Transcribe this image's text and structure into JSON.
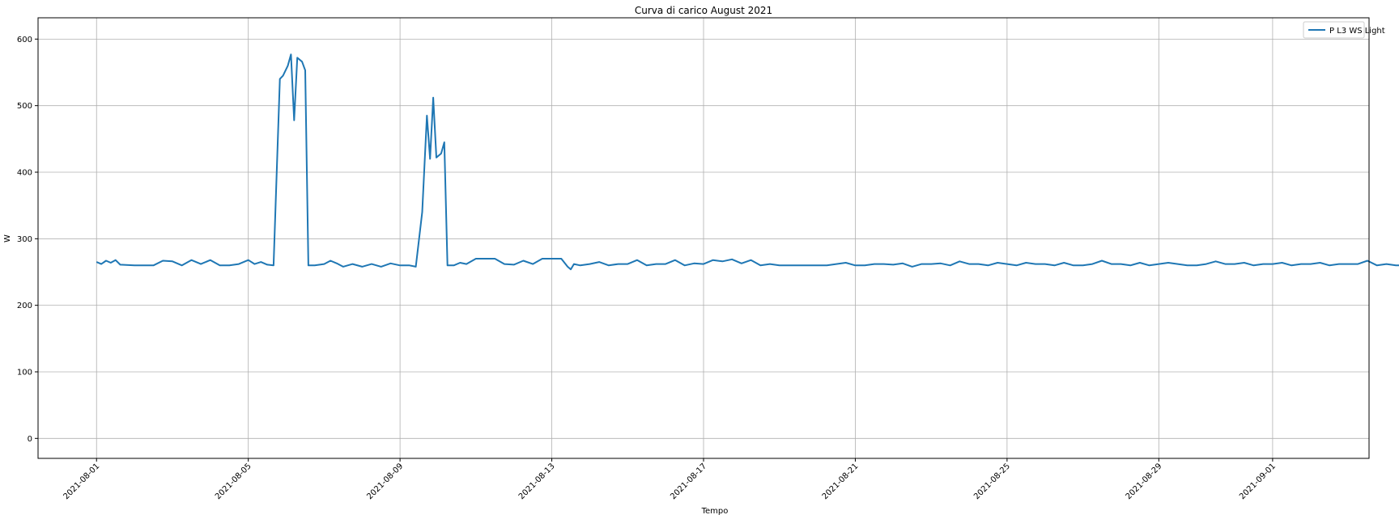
{
  "chart_data": {
    "type": "line",
    "title": "Curva di carico August 2021",
    "xlabel": "Tempo",
    "ylabel": "W",
    "xlim": [
      "2021-07-30T11:00",
      "2021-09-03T13:00"
    ],
    "ylim": [
      -30,
      632
    ],
    "x_ticks": [
      "2021-08-01",
      "2021-08-05",
      "2021-08-09",
      "2021-08-13",
      "2021-08-17",
      "2021-08-21",
      "2021-08-25",
      "2021-08-29",
      "2021-09-01"
    ],
    "y_ticks": [
      "0",
      "100",
      "200",
      "300",
      "400",
      "500",
      "600"
    ],
    "grid": true,
    "legend_position": "top-right",
    "colors": {
      "series": "#1f77b4",
      "grid": "#b0b0b0",
      "axes": "#000000",
      "legend_border": "#cccccc"
    },
    "series": [
      {
        "name": "P L3 WS Light",
        "points": [
          [
            "2021-08-01T00:00",
            265
          ],
          [
            "2021-08-01T03:00",
            262
          ],
          [
            "2021-08-01T06:00",
            267
          ],
          [
            "2021-08-01T09:00",
            264
          ],
          [
            "2021-08-01T12:00",
            268
          ],
          [
            "2021-08-01T15:00",
            261
          ],
          [
            "2021-08-02T00:00",
            260
          ],
          [
            "2021-08-02T06:00",
            260
          ],
          [
            "2021-08-02T12:00",
            260
          ],
          [
            "2021-08-02T18:00",
            267
          ],
          [
            "2021-08-03T00:00",
            266
          ],
          [
            "2021-08-03T06:00",
            260
          ],
          [
            "2021-08-03T12:00",
            268
          ],
          [
            "2021-08-03T18:00",
            262
          ],
          [
            "2021-08-04T00:00",
            268
          ],
          [
            "2021-08-04T06:00",
            260
          ],
          [
            "2021-08-04T12:00",
            260
          ],
          [
            "2021-08-04T18:00",
            262
          ],
          [
            "2021-08-05T00:00",
            268
          ],
          [
            "2021-08-05T04:00",
            262
          ],
          [
            "2021-08-05T08:00",
            265
          ],
          [
            "2021-08-05T12:00",
            261
          ],
          [
            "2021-08-05T16:00",
            260
          ],
          [
            "2021-08-05T20:00",
            540
          ],
          [
            "2021-08-05T22:00",
            545
          ],
          [
            "2021-08-06T01:00",
            560
          ],
          [
            "2021-08-06T03:00",
            577
          ],
          [
            "2021-08-06T05:00",
            478
          ],
          [
            "2021-08-06T07:00",
            572
          ],
          [
            "2021-08-06T10:00",
            566
          ],
          [
            "2021-08-06T12:00",
            553
          ],
          [
            "2021-08-06T14:00",
            260
          ],
          [
            "2021-08-06T18:00",
            260
          ],
          [
            "2021-08-07T00:00",
            262
          ],
          [
            "2021-08-07T04:00",
            267
          ],
          [
            "2021-08-07T08:00",
            263
          ],
          [
            "2021-08-07T12:00",
            258
          ],
          [
            "2021-08-07T18:00",
            262
          ],
          [
            "2021-08-08T00:00",
            258
          ],
          [
            "2021-08-08T06:00",
            262
          ],
          [
            "2021-08-08T12:00",
            258
          ],
          [
            "2021-08-08T18:00",
            263
          ],
          [
            "2021-08-09T00:00",
            260
          ],
          [
            "2021-08-09T06:00",
            260
          ],
          [
            "2021-08-09T10:00",
            258
          ],
          [
            "2021-08-09T14:00",
            340
          ],
          [
            "2021-08-09T17:00",
            485
          ],
          [
            "2021-08-09T19:00",
            420
          ],
          [
            "2021-08-09T21:00",
            512
          ],
          [
            "2021-08-09T23:00",
            422
          ],
          [
            "2021-08-10T02:00",
            428
          ],
          [
            "2021-08-10T04:00",
            445
          ],
          [
            "2021-08-10T06:00",
            260
          ],
          [
            "2021-08-10T10:00",
            260
          ],
          [
            "2021-08-10T14:00",
            264
          ],
          [
            "2021-08-10T18:00",
            262
          ],
          [
            "2021-08-11T00:00",
            270
          ],
          [
            "2021-08-11T06:00",
            270
          ],
          [
            "2021-08-11T12:00",
            270
          ],
          [
            "2021-08-11T18:00",
            262
          ],
          [
            "2021-08-12T00:00",
            261
          ],
          [
            "2021-08-12T06:00",
            267
          ],
          [
            "2021-08-12T12:00",
            262
          ],
          [
            "2021-08-12T18:00",
            270
          ],
          [
            "2021-08-13T00:00",
            270
          ],
          [
            "2021-08-13T06:00",
            270
          ],
          [
            "2021-08-13T10:00",
            258
          ],
          [
            "2021-08-13T12:00",
            254
          ],
          [
            "2021-08-13T14:00",
            262
          ],
          [
            "2021-08-13T18:00",
            260
          ],
          [
            "2021-08-14T00:00",
            262
          ],
          [
            "2021-08-14T06:00",
            265
          ],
          [
            "2021-08-14T12:00",
            260
          ],
          [
            "2021-08-14T18:00",
            262
          ],
          [
            "2021-08-15T00:00",
            262
          ],
          [
            "2021-08-15T06:00",
            268
          ],
          [
            "2021-08-15T12:00",
            260
          ],
          [
            "2021-08-15T18:00",
            262
          ],
          [
            "2021-08-16T00:00",
            262
          ],
          [
            "2021-08-16T06:00",
            268
          ],
          [
            "2021-08-16T12:00",
            260
          ],
          [
            "2021-08-16T18:00",
            263
          ],
          [
            "2021-08-17T00:00",
            262
          ],
          [
            "2021-08-17T06:00",
            268
          ],
          [
            "2021-08-17T12:00",
            266
          ],
          [
            "2021-08-17T18:00",
            269
          ],
          [
            "2021-08-18T00:00",
            263
          ],
          [
            "2021-08-18T06:00",
            268
          ],
          [
            "2021-08-18T12:00",
            260
          ],
          [
            "2021-08-18T18:00",
            262
          ],
          [
            "2021-08-19T00:00",
            260
          ],
          [
            "2021-08-19T06:00",
            260
          ],
          [
            "2021-08-19T12:00",
            260
          ],
          [
            "2021-08-19T18:00",
            260
          ],
          [
            "2021-08-20T00:00",
            260
          ],
          [
            "2021-08-20T06:00",
            260
          ],
          [
            "2021-08-20T12:00",
            262
          ],
          [
            "2021-08-20T18:00",
            264
          ],
          [
            "2021-08-21T00:00",
            260
          ],
          [
            "2021-08-21T06:00",
            260
          ],
          [
            "2021-08-21T12:00",
            262
          ],
          [
            "2021-08-21T18:00",
            262
          ],
          [
            "2021-08-22T00:00",
            261
          ],
          [
            "2021-08-22T06:00",
            263
          ],
          [
            "2021-08-22T12:00",
            258
          ],
          [
            "2021-08-22T18:00",
            262
          ],
          [
            "2021-08-23T00:00",
            262
          ],
          [
            "2021-08-23T06:00",
            263
          ],
          [
            "2021-08-23T12:00",
            260
          ],
          [
            "2021-08-23T18:00",
            266
          ],
          [
            "2021-08-24T00:00",
            262
          ],
          [
            "2021-08-24T06:00",
            262
          ],
          [
            "2021-08-24T12:00",
            260
          ],
          [
            "2021-08-24T18:00",
            264
          ],
          [
            "2021-08-25T00:00",
            262
          ],
          [
            "2021-08-25T06:00",
            260
          ],
          [
            "2021-08-25T12:00",
            264
          ],
          [
            "2021-08-25T18:00",
            262
          ],
          [
            "2021-08-26T00:00",
            262
          ],
          [
            "2021-08-26T06:00",
            260
          ],
          [
            "2021-08-26T12:00",
            264
          ],
          [
            "2021-08-26T18:00",
            260
          ],
          [
            "2021-08-27T00:00",
            260
          ],
          [
            "2021-08-27T06:00",
            262
          ],
          [
            "2021-08-27T12:00",
            267
          ],
          [
            "2021-08-27T18:00",
            262
          ],
          [
            "2021-08-28T00:00",
            262
          ],
          [
            "2021-08-28T06:00",
            260
          ],
          [
            "2021-08-28T12:00",
            264
          ],
          [
            "2021-08-28T18:00",
            260
          ],
          [
            "2021-08-29T00:00",
            262
          ],
          [
            "2021-08-29T06:00",
            264
          ],
          [
            "2021-08-29T12:00",
            262
          ],
          [
            "2021-08-29T18:00",
            260
          ],
          [
            "2021-08-30T00:00",
            260
          ],
          [
            "2021-08-30T06:00",
            262
          ],
          [
            "2021-08-30T12:00",
            266
          ],
          [
            "2021-08-30T18:00",
            262
          ],
          [
            "2021-08-31T00:00",
            262
          ],
          [
            "2021-08-31T06:00",
            264
          ],
          [
            "2021-08-31T12:00",
            260
          ],
          [
            "2021-08-31T18:00",
            262
          ],
          [
            "2021-09-01T00:00",
            262
          ],
          [
            "2021-09-01T06:00",
            264
          ],
          [
            "2021-09-01T12:00",
            260
          ],
          [
            "2021-09-01T18:00",
            262
          ],
          [
            "2021-09-02T00:00",
            262
          ],
          [
            "2021-09-02T06:00",
            264
          ],
          [
            "2021-09-02T12:00",
            260
          ],
          [
            "2021-09-02T18:00",
            262
          ],
          [
            "2021-09-03T00:00",
            262
          ],
          [
            "2021-09-03T06:00",
            262
          ],
          [
            "2021-09-03T12:00",
            267
          ],
          [
            "2021-09-03T18:00",
            260
          ],
          [
            "2021-09-04T00:00",
            262
          ],
          [
            "2021-09-04T06:00",
            260
          ],
          [
            "2021-09-04T12:00",
            260
          ]
        ]
      }
    ]
  }
}
